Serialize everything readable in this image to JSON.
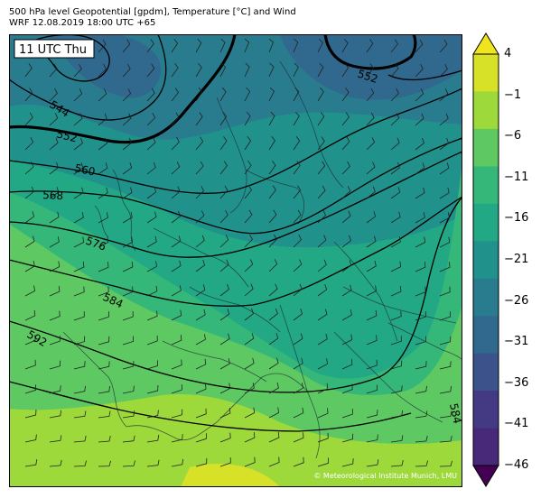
{
  "header": {
    "line1": "500 hPa level Geopotential [gpdm], Temperature [°C] and Wind",
    "line2": "WRF 12.08.2019 18:00 UTC +65"
  },
  "map": {
    "time_label": "11 UTC Thu",
    "copyright": "© Meteorological Institute Munich, LMU",
    "contour_labels": [
      "544",
      "552",
      "552",
      "560",
      "568",
      "576",
      "584",
      "592",
      "584"
    ]
  },
  "colorbar": {
    "ticks": [
      "4",
      "−1",
      "−6",
      "−11",
      "−16",
      "−21",
      "−26",
      "−31",
      "−36",
      "−41",
      "−46"
    ],
    "colors": [
      "#f0e51c",
      "#d6e128",
      "#9dd93b",
      "#5ec962",
      "#35b779",
      "#22a884",
      "#21918c",
      "#287c8e",
      "#31688e",
      "#3b528b",
      "#443983",
      "#482878",
      "#440154"
    ]
  }
}
